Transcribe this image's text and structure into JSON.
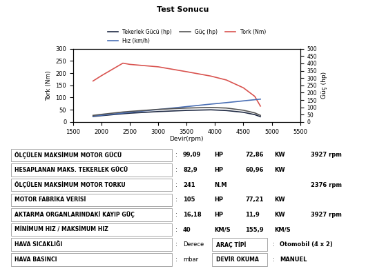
{
  "title": "Test Sonucu",
  "chart_data": {
    "type": "line",
    "x": [
      1850,
      2000,
      2376,
      2500,
      3000,
      3500,
      3927,
      4200,
      4500,
      4700,
      4800
    ],
    "x_label": "Devir(rpm)",
    "y_label": "Tork (Nm)",
    "y2_label": "Güç (hp)",
    "xlim": [
      1500,
      5500
    ],
    "xticks": [
      1500,
      2000,
      2500,
      3000,
      3500,
      4000,
      4500,
      5000,
      5500
    ],
    "ylim": [
      0,
      300
    ],
    "yticks": [
      0,
      50,
      100,
      150,
      200,
      250,
      300
    ],
    "y2lim": [
      0,
      500
    ],
    "y2ticks": [
      0,
      50,
      100,
      150,
      200,
      250,
      300,
      350,
      400,
      450,
      500
    ],
    "grid": false,
    "legend": "lower center",
    "series": [
      {
        "name": "Tekerlek Gücü (hp)",
        "color": "#1f2a44",
        "line_style": "solid",
        "axis": "y2",
        "values": [
          37,
          43,
          56,
          60,
          71,
          79,
          82.9,
          78,
          66,
          50,
          36
        ]
      },
      {
        "name": "Hız (km/h)",
        "color": "#4a6fb5",
        "line_style": "solid",
        "axis": "y2",
        "values": [
          40,
          46,
          61,
          66,
          85,
          105,
          122,
          132,
          144,
          152,
          155.9
        ]
      },
      {
        "name": "Güç (hp)",
        "color": "#555555",
        "line_style": "solid",
        "axis": "y2",
        "values": [
          45,
          52,
          68,
          72,
          86,
          95,
          99.09,
          95,
          80,
          62,
          45
        ]
      },
      {
        "name": "Tork (Nm)",
        "color": "#d9534f",
        "line_style": "solid",
        "values": [
          168,
          190,
          241,
          236,
          226,
          206,
          188,
          172,
          140,
          105,
          65
        ]
      }
    ]
  },
  "table": {
    "separator": ":",
    "rows": [
      {
        "label": "ÖLÇÜLEN MAKSİMUM MOTOR GÜCÜ",
        "value": "99,09",
        "unit": "HP",
        "kw": "72,86",
        "kw_unit": "KW",
        "rpm": "3927 rpm"
      },
      {
        "label": "HESAPLANAN MAKS. TEKERLEK GÜCÜ",
        "value": "82,9",
        "unit": "HP",
        "kw": "60,96",
        "kw_unit": "KW"
      },
      {
        "label": "ÖLÇÜLEN MAKSİMUM MOTOR TORKU",
        "value": "241",
        "unit": "N.M",
        "rpm": "2376 rpm"
      },
      {
        "label": "MOTOR FABRİKA VERİSİ",
        "value": "105",
        "unit": "HP",
        "kw": "77,21",
        "kw_unit": "KW"
      },
      {
        "label": "AKTARMA ORGANLARINDAKİ KAYIP GÜÇ",
        "value": "16,18",
        "unit": "HP",
        "kw": "11,9",
        "kw_unit": "KW",
        "rpm": "3927 rpm"
      },
      {
        "label": "MİNİMUM HIZ / MAKSİMUM HIZ",
        "value": "40",
        "unit": "KM/S",
        "kw": "155,9",
        "kw_unit": "KM/S"
      },
      {
        "label": "HAVA SICAKLIĞI",
        "unit": "Derece",
        "right_label": "ARAÇ TİPİ",
        "right_value": "Otomobil (4 x 2)"
      },
      {
        "label": "HAVA BASINCI",
        "unit": "mbar",
        "right_label": "DEVİR OKUMA",
        "right_value": "MANUEL"
      }
    ]
  }
}
